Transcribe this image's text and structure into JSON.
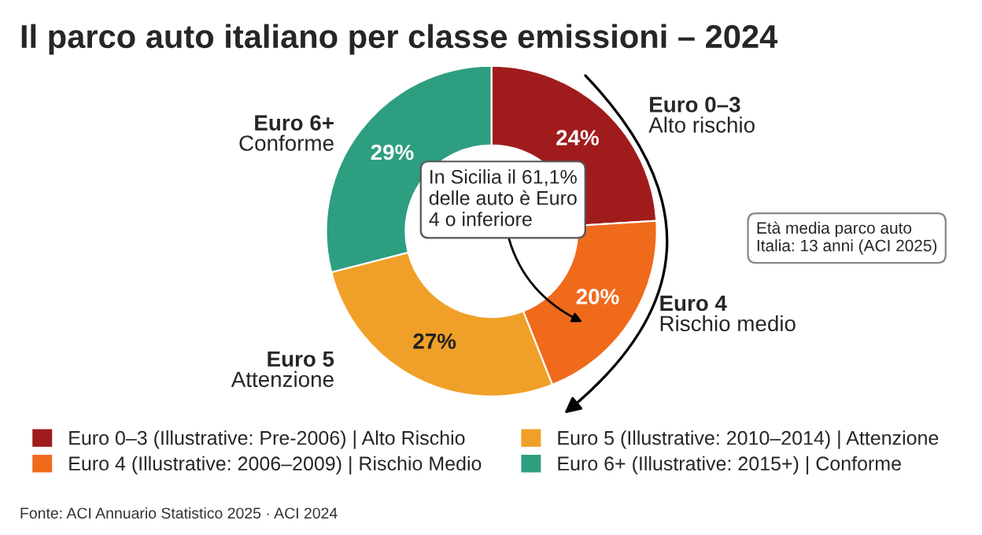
{
  "chart_data": {
    "type": "donut",
    "title": "Il parco auto italiano per classe emissioni – 2024",
    "categories": [
      "Euro 0–3 (Illustrative: Pre-2006) | Alto Rischio",
      "Euro 4 (Illustrative: 2006–2009) | Rischio Medio",
      "Euro 5 (Illustrative: 2010–2014) | Attenzione",
      "Euro 6+ (Illustrative: 2015+) | Conforme"
    ],
    "values": [
      24,
      20,
      27,
      29
    ],
    "colors": [
      "#a01c1c",
      "#f06a1c",
      "#f0a028",
      "#2e9e80"
    ],
    "value_labels": [
      "24%",
      "20%",
      "27%",
      "29%"
    ],
    "legend": "bottom",
    "annotations": [
      "Euro 0–3\nAlto rischio",
      "Euro 4\nRischio medio",
      "Euro 5\nAttenzione",
      "Euro 6+\nConforme",
      "In Sicilia il 61,1%\ndelle auto è Euro\n4 o inferiore",
      "Età media parco auto\nItalia: 13 anni (ACI 2025)",
      "Fonte: ACI Annuario Statistico 2025 · ACI 2024"
    ]
  }
}
